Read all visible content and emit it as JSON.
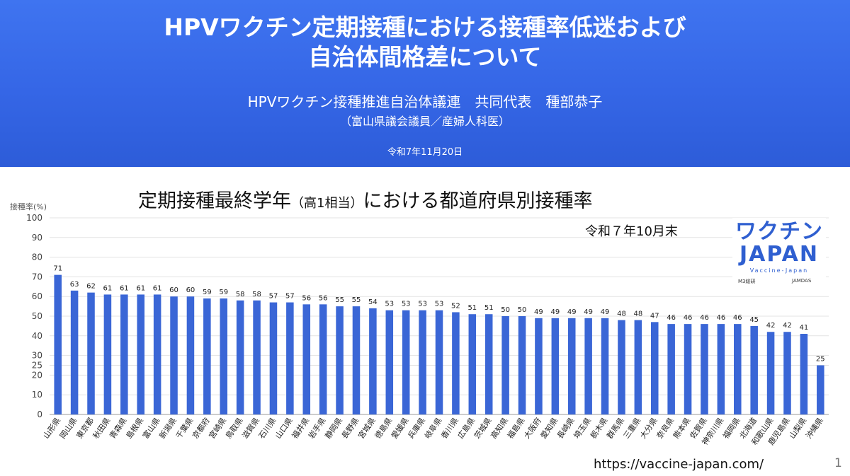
{
  "slide": {
    "title_line1": "HPVワクチン定期接種における接種率低迷および",
    "title_line2": "自治体間格差について",
    "author": "HPVワクチン接種推進自治体議連　共同代表　種部恭子",
    "affiliation": "（富山県議会議員／産婦人科医）",
    "date": "令和7年11月20日",
    "chart_title_a": "定期接種最終学年",
    "chart_title_b": "（高1相当）",
    "chart_title_c": "における都道府県別接種率",
    "as_of": "令和７年10月末",
    "logo_line1": "ワクチン",
    "logo_line2": "JAPAN",
    "logo_line3": "Vaccine-Japan",
    "logo_partner1": "M3総研",
    "logo_partner2": "JAMDAS",
    "url": "https://vaccine-japan.com/",
    "page_number": "1"
  },
  "colors": {
    "banner": "#3566e6",
    "bar": "#3a66d6",
    "grid": "#e3e3e3"
  },
  "chart_data": {
    "type": "bar",
    "ylabel": "接種率(%)",
    "ylim": [
      0,
      100
    ],
    "yticks": [
      "0",
      "10",
      "20",
      "25",
      "30",
      "40",
      "50",
      "60",
      "70",
      "80",
      "90",
      "100"
    ],
    "ytick_values": [
      0,
      10,
      20,
      25,
      30,
      40,
      50,
      60,
      70,
      80,
      90,
      100
    ],
    "grid": true,
    "categories": [
      "山形県",
      "岡山県",
      "東京都",
      "秋田県",
      "青森県",
      "島根県",
      "富山県",
      "新潟県",
      "千葉県",
      "京都府",
      "宮崎県",
      "鳥取県",
      "滋賀県",
      "石川県",
      "山口県",
      "福井県",
      "岩手県",
      "静岡県",
      "長野県",
      "宮城県",
      "徳島県",
      "愛媛県",
      "兵庫県",
      "岐阜県",
      "香川県",
      "広島県",
      "茨城県",
      "高知県",
      "福島県",
      "大阪府",
      "愛知県",
      "長崎県",
      "埼玉県",
      "栃木県",
      "群馬県",
      "三重県",
      "大分県",
      "奈良県",
      "熊本県",
      "佐賀県",
      "神奈川県",
      "福岡県",
      "北海道",
      "和歌山県",
      "鹿児島県",
      "山梨県",
      "沖縄県"
    ],
    "values": [
      71,
      63,
      62,
      61,
      61,
      61,
      61,
      60,
      60,
      59,
      59,
      58,
      58,
      57,
      57,
      56,
      56,
      55,
      55,
      54,
      53,
      53,
      53,
      53,
      52,
      51,
      51,
      50,
      50,
      49,
      49,
      49,
      49,
      49,
      48,
      48,
      47,
      46,
      46,
      46,
      46,
      46,
      45,
      42,
      42,
      41,
      25
    ]
  }
}
